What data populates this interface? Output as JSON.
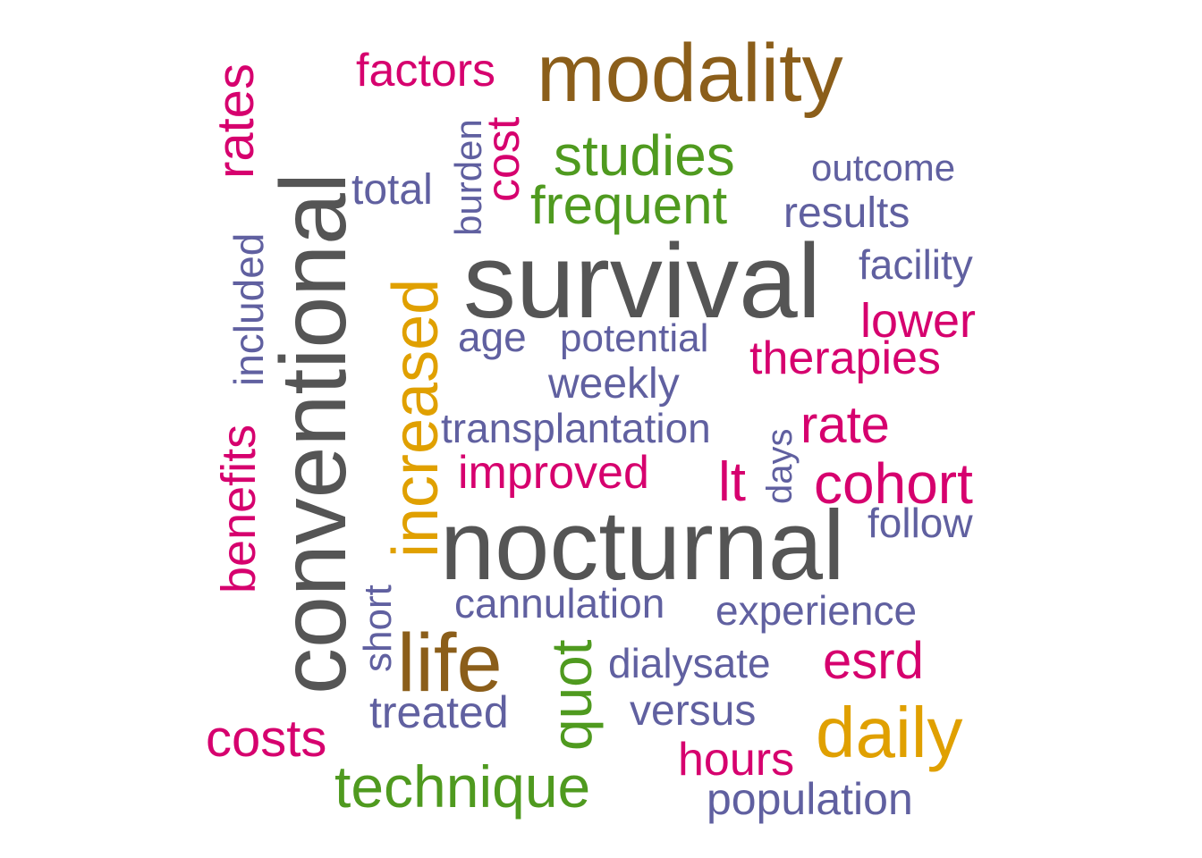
{
  "words": [
    {
      "text": "survival",
      "color": "#555555"
    },
    {
      "text": "nocturnal",
      "color": "#555555"
    },
    {
      "text": "conventional",
      "color": "#555555"
    },
    {
      "text": "modality",
      "color": "#8B5E1A"
    },
    {
      "text": "life",
      "color": "#8B5E1A"
    },
    {
      "text": "daily",
      "color": "#E0A000"
    },
    {
      "text": "increased",
      "color": "#E0A000"
    },
    {
      "text": "studies",
      "color": "#4F9A1F"
    },
    {
      "text": "frequent",
      "color": "#4F9A1F"
    },
    {
      "text": "technique",
      "color": "#4F9A1F"
    },
    {
      "text": "quot",
      "color": "#4F9A1F"
    },
    {
      "text": "rates",
      "color": "#D6006E"
    },
    {
      "text": "factors",
      "color": "#D6006E"
    },
    {
      "text": "cost",
      "color": "#D6006E"
    },
    {
      "text": "lower",
      "color": "#D6006E"
    },
    {
      "text": "therapies",
      "color": "#D6006E"
    },
    {
      "text": "rate",
      "color": "#D6006E"
    },
    {
      "text": "cohort",
      "color": "#D6006E"
    },
    {
      "text": "lt",
      "color": "#D6006E"
    },
    {
      "text": "improved",
      "color": "#D6006E"
    },
    {
      "text": "benefits",
      "color": "#D6006E"
    },
    {
      "text": "esrd",
      "color": "#D6006E"
    },
    {
      "text": "costs",
      "color": "#D6006E"
    },
    {
      "text": "hours",
      "color": "#D6006E"
    },
    {
      "text": "outcome",
      "color": "#6060A0"
    },
    {
      "text": "total",
      "color": "#6060A0"
    },
    {
      "text": "burden",
      "color": "#6060A0"
    },
    {
      "text": "results",
      "color": "#6060A0"
    },
    {
      "text": "facility",
      "color": "#6060A0"
    },
    {
      "text": "included",
      "color": "#6060A0"
    },
    {
      "text": "age",
      "color": "#6060A0"
    },
    {
      "text": "potential",
      "color": "#6060A0"
    },
    {
      "text": "weekly",
      "color": "#6060A0"
    },
    {
      "text": "transplantation",
      "color": "#6060A0"
    },
    {
      "text": "days",
      "color": "#6060A0"
    },
    {
      "text": "follow",
      "color": "#6060A0"
    },
    {
      "text": "cannulation",
      "color": "#6060A0"
    },
    {
      "text": "short",
      "color": "#6060A0"
    },
    {
      "text": "experience",
      "color": "#6060A0"
    },
    {
      "text": "dialysate",
      "color": "#6060A0"
    },
    {
      "text": "treated",
      "color": "#6060A0"
    },
    {
      "text": "versus",
      "color": "#6060A0"
    },
    {
      "text": "population",
      "color": "#6060A0"
    }
  ]
}
